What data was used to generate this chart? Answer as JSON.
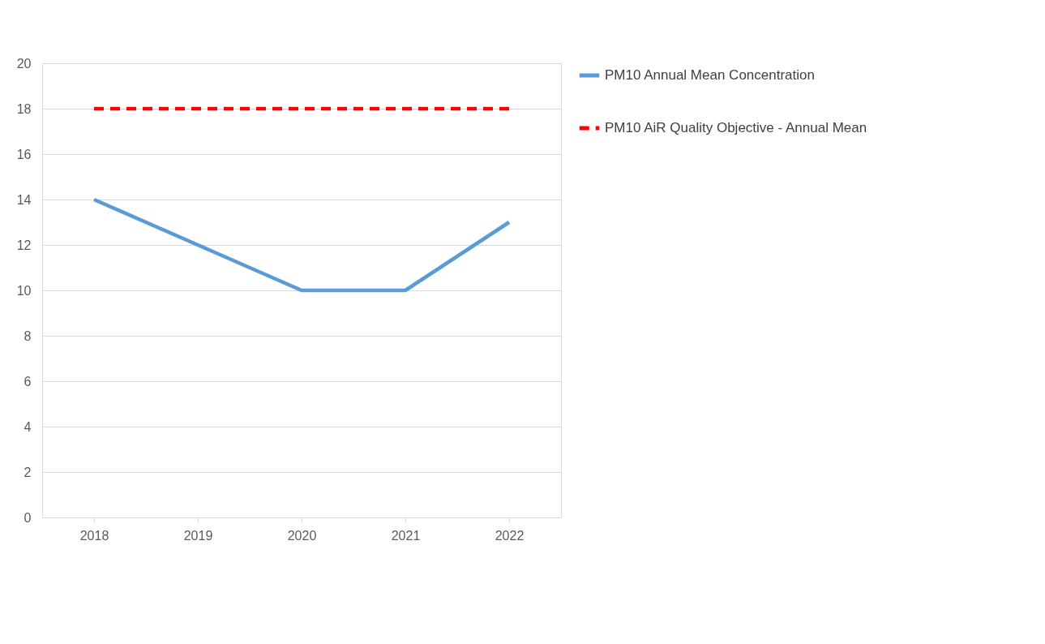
{
  "chart_data": {
    "type": "line",
    "categories": [
      "2018",
      "2019",
      "2020",
      "2021",
      "2022"
    ],
    "series": [
      {
        "name": "PM10 Annual Mean Concentration",
        "color": "#5b9bd5",
        "values": [
          14,
          12,
          10,
          10,
          13
        ],
        "line_style": "solid"
      },
      {
        "name": "PM10 AiR Quality Objective - Annual Mean",
        "color": "#ff0000",
        "values": [
          18,
          18,
          18,
          18,
          18
        ],
        "line_style": "dashed"
      }
    ],
    "ylim": [
      0,
      20
    ],
    "yticks": [
      0,
      2,
      4,
      6,
      8,
      10,
      12,
      14,
      16,
      18,
      20
    ],
    "grid": "y",
    "legend": "right",
    "marker": "none"
  }
}
